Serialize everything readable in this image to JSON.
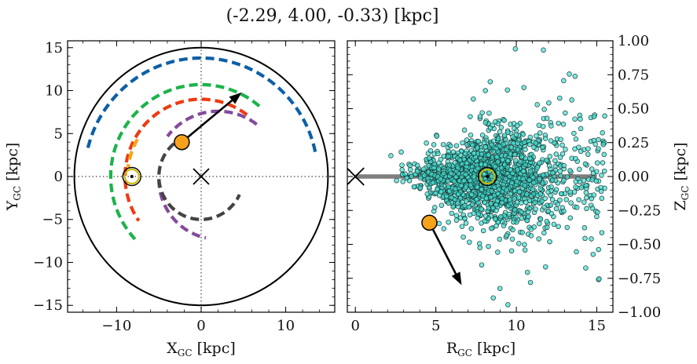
{
  "title": "(-2.29, 4.00, -0.33) [kpc]",
  "chart_data": [
    {
      "type": "scatter",
      "panel": "left",
      "xlabel": "X",
      "xlabel_sub": "GC",
      "xlabel_unit": " [kpc]",
      "ylabel": "Y",
      "ylabel_sub": "GC",
      "ylabel_unit": " [kpc]",
      "xlim": [
        -15.8,
        15.8
      ],
      "ylim": [
        -15.8,
        15.8
      ],
      "xticks": [
        -10,
        0,
        10
      ],
      "xtick_labels": [
        "−10",
        "0",
        "10"
      ],
      "yticks": [
        -15,
        -10,
        -5,
        0,
        5,
        10,
        15
      ],
      "ytick_labels": [
        "−15",
        "−10",
        "−5",
        "0",
        "5",
        "10",
        "15"
      ],
      "grid": false,
      "boundary_circle_radius": 15,
      "galactic_center": [
        0,
        0
      ],
      "sun": [
        -8.2,
        0
      ],
      "object": [
        -2.29,
        4.0
      ],
      "velocity_arrow_tip": [
        4.8,
        9.8
      ],
      "spiral_arms": [
        {
          "color": "#0d5fa6",
          "radius": 13.8,
          "theta_deg": [
            12,
            168
          ]
        },
        {
          "color": "#1db34a",
          "radius": 10.7,
          "theta_deg": [
            50,
            223
          ]
        },
        {
          "color": "#ee3a12",
          "radius": 9.0,
          "theta_deg": [
            53,
            215
          ]
        },
        {
          "color": "#f6a515",
          "radius": 8.7,
          "theta_deg": [
            150,
            173
          ]
        },
        {
          "color": "#844a9c",
          "radius": 7.6,
          "theta_deg": [
            53,
            142
          ],
          "center": [
            2.0,
            0
          ]
        },
        {
          "color": "#844a9c",
          "radius": 7.0,
          "theta_deg": [
            180,
            258
          ],
          "center": [
            2.0,
            -0.3
          ]
        },
        {
          "color": "#444444",
          "radius": 5.0,
          "theta_deg": [
            112,
            335
          ]
        }
      ]
    },
    {
      "type": "scatter",
      "panel": "right",
      "xlabel": "R",
      "xlabel_sub": "GC",
      "xlabel_unit": " [kpc]",
      "ylabel": "Z",
      "ylabel_sub": "GC",
      "ylabel_unit": " [kpc]",
      "xlim": [
        -0.5,
        16.0
      ],
      "ylim": [
        -1.0,
        1.0
      ],
      "xticks": [
        0,
        5,
        10,
        15
      ],
      "xtick_labels": [
        "0",
        "5",
        "10",
        "15"
      ],
      "yticks": [
        -1.0,
        -0.75,
        -0.5,
        -0.25,
        0.0,
        0.25,
        0.5,
        0.75,
        1.0
      ],
      "ytick_labels": [
        "−1.00",
        "−0.75",
        "−0.50",
        "−0.25",
        "0.00",
        "0.25",
        "0.50",
        "0.75",
        "1.00"
      ],
      "grid": false,
      "disk_line": {
        "x": [
          0,
          15
        ],
        "y": 0
      },
      "galactic_center": [
        0,
        0
      ],
      "sun": [
        8.2,
        0
      ],
      "object": [
        4.6,
        -0.34
      ],
      "velocity_arrow_tip": [
        6.6,
        -0.8
      ],
      "point_color": "#40e0d0",
      "point_count_approx": 1800,
      "distribution": {
        "r_range": [
          1.5,
          15.5
        ],
        "r_peak": 8.2,
        "z_spread_at_sun": 0.06,
        "z_spread_grows_with_r": true
      }
    }
  ]
}
